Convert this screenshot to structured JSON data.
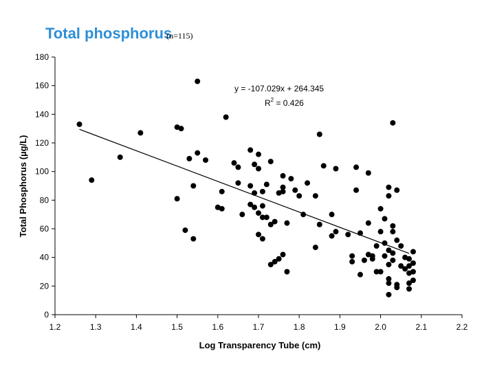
{
  "title": {
    "main": "Total phosphorus",
    "sub": "(n=115)"
  },
  "chart_data": {
    "type": "scatter",
    "title": "",
    "xlabel": "Log Transparency Tube (cm)",
    "ylabel": "Total Phosphorus (µg/L)",
    "xlim": [
      1.2,
      2.2
    ],
    "ylim": [
      0,
      180
    ],
    "x_ticks": [
      "1.2",
      "1.3",
      "1.4",
      "1.5",
      "1.6",
      "1.7",
      "1.8",
      "1.9",
      "2.0",
      "2.1",
      "2.2"
    ],
    "y_ticks": [
      "0",
      "20",
      "40",
      "60",
      "80",
      "100",
      "120",
      "140",
      "160",
      "180"
    ],
    "grid": false,
    "legend": "none",
    "trendline": {
      "slope": -107.029,
      "intercept": 264.345,
      "x_range": [
        1.26,
        2.07
      ],
      "equation": "y = -107.029x + 264.345",
      "r2_label": "R",
      "r2_sup": "2",
      "r2_value": " = 0.426"
    },
    "marker_color": "#000000",
    "points": [
      [
        1.26,
        133
      ],
      [
        1.29,
        94
      ],
      [
        1.36,
        110
      ],
      [
        1.41,
        127
      ],
      [
        1.5,
        81
      ],
      [
        1.5,
        131
      ],
      [
        1.51,
        130
      ],
      [
        1.52,
        59
      ],
      [
        1.53,
        109
      ],
      [
        1.54,
        90
      ],
      [
        1.54,
        53
      ],
      [
        1.55,
        163
      ],
      [
        1.55,
        113
      ],
      [
        1.57,
        108
      ],
      [
        1.6,
        75
      ],
      [
        1.61,
        86
      ],
      [
        1.61,
        74
      ],
      [
        1.62,
        138
      ],
      [
        1.64,
        106
      ],
      [
        1.65,
        92
      ],
      [
        1.65,
        103
      ],
      [
        1.66,
        70
      ],
      [
        1.68,
        90
      ],
      [
        1.68,
        77
      ],
      [
        1.68,
        115
      ],
      [
        1.69,
        105
      ],
      [
        1.69,
        85
      ],
      [
        1.69,
        75
      ],
      [
        1.7,
        112
      ],
      [
        1.7,
        102
      ],
      [
        1.7,
        71
      ],
      [
        1.7,
        56
      ],
      [
        1.71,
        76
      ],
      [
        1.71,
        53
      ],
      [
        1.71,
        68
      ],
      [
        1.71,
        86
      ],
      [
        1.72,
        68
      ],
      [
        1.72,
        91
      ],
      [
        1.73,
        107
      ],
      [
        1.73,
        35
      ],
      [
        1.73,
        63
      ],
      [
        1.74,
        37
      ],
      [
        1.74,
        65
      ],
      [
        1.75,
        39
      ],
      [
        1.75,
        85
      ],
      [
        1.76,
        42
      ],
      [
        1.76,
        97
      ],
      [
        1.76,
        86
      ],
      [
        1.76,
        89
      ],
      [
        1.77,
        64
      ],
      [
        1.77,
        30
      ],
      [
        1.78,
        95
      ],
      [
        1.79,
        87
      ],
      [
        1.8,
        83
      ],
      [
        1.81,
        70
      ],
      [
        1.82,
        92
      ],
      [
        1.84,
        47
      ],
      [
        1.84,
        83
      ],
      [
        1.85,
        63
      ],
      [
        1.85,
        126
      ],
      [
        1.86,
        104
      ],
      [
        1.88,
        70
      ],
      [
        1.88,
        55
      ],
      [
        1.89,
        58
      ],
      [
        1.89,
        102
      ],
      [
        1.92,
        56
      ],
      [
        1.93,
        37
      ],
      [
        1.93,
        41
      ],
      [
        1.94,
        103
      ],
      [
        1.94,
        87
      ],
      [
        1.95,
        57
      ],
      [
        1.95,
        28
      ],
      [
        1.96,
        38
      ],
      [
        1.97,
        64
      ],
      [
        1.97,
        99
      ],
      [
        1.97,
        42
      ],
      [
        1.98,
        39
      ],
      [
        1.98,
        41
      ],
      [
        1.99,
        48
      ],
      [
        2.0,
        74
      ],
      [
        2.0,
        30
      ],
      [
        2.01,
        67
      ],
      [
        2.01,
        50
      ],
      [
        2.01,
        41
      ],
      [
        2.02,
        89
      ],
      [
        2.02,
        83
      ],
      [
        2.02,
        45
      ],
      [
        2.02,
        35
      ],
      [
        2.02,
        25
      ],
      [
        2.02,
        22
      ],
      [
        2.02,
        14
      ],
      [
        2.03,
        134
      ],
      [
        2.03,
        62
      ],
      [
        2.03,
        58
      ],
      [
        2.03,
        43
      ],
      [
        2.03,
        38
      ],
      [
        2.04,
        87
      ],
      [
        2.04,
        52
      ],
      [
        2.04,
        21
      ],
      [
        2.04,
        19
      ],
      [
        2.05,
        48
      ],
      [
        2.05,
        34
      ],
      [
        2.06,
        40
      ],
      [
        2.07,
        39
      ],
      [
        2.07,
        34
      ],
      [
        2.07,
        29
      ],
      [
        2.07,
        22
      ],
      [
        2.07,
        18
      ],
      [
        2.08,
        44
      ],
      [
        2.08,
        36
      ],
      [
        2.08,
        30
      ],
      [
        2.08,
        24
      ],
      [
        1.99,
        30
      ],
      [
        2.06,
        32
      ],
      [
        2.0,
        58
      ]
    ]
  }
}
